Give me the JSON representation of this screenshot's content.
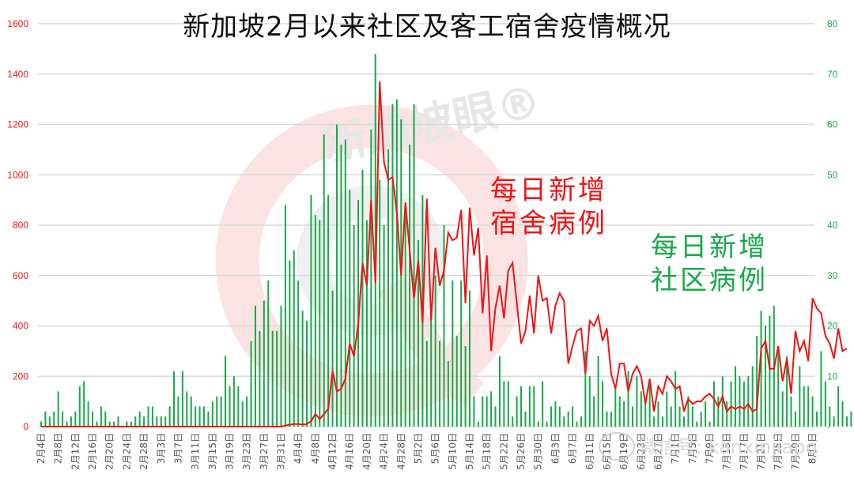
{
  "title": "新加坡2月以来社区及客工宿舍疫情概况",
  "annotations": {
    "dorm": {
      "line1": "每日新增",
      "line2": "宿舍病例",
      "color": "#f01414"
    },
    "community": {
      "line1": "每日新增",
      "line2": "社区病例",
      "color": "#19a84b"
    }
  },
  "watermarks": {
    "center": "新加坡眼®",
    "bottom_right": "微信号: kanxinjiapo"
  },
  "colors": {
    "dorm_line": "#f01414",
    "community_bar": "#19a84b",
    "grid": "#d9d9d9",
    "left_axis_text": "#f01414",
    "right_axis_text": "#19a84b"
  },
  "chart_data": {
    "type": "bar+line",
    "title": "新加坡2月以来社区及客工宿舍疫情概况",
    "xlabel": "",
    "start_date": "2月4日",
    "x_tick_labels": [
      "2月4日",
      "2月8日",
      "2月12日",
      "2月16日",
      "2月20日",
      "2月24日",
      "2月28日",
      "3月3日",
      "3月7日",
      "3月11日",
      "3月15日",
      "3月19日",
      "3月23日",
      "3月27日",
      "3月31日",
      "4月4日",
      "4月8日",
      "4月12日",
      "4月16日",
      "4月20日",
      "4月24日",
      "4月28日",
      "5月2日",
      "5月6日",
      "5月10日",
      "5月14日",
      "5月18日",
      "5月22日",
      "5月26日",
      "5月30日",
      "6月3日",
      "6月7日",
      "6月11日",
      "6月15日",
      "6月19日",
      "6月23日",
      "6月27日",
      "7月1日",
      "7月5日",
      "7月9日",
      "7月13日",
      "7月17日",
      "7月21日",
      "7月25日",
      "7月29日",
      "8月1日"
    ],
    "left_axis": {
      "label": "每日新增宿舍病例",
      "ylim": [
        0,
        1600
      ],
      "ticks": [
        0,
        200,
        400,
        600,
        800,
        1000,
        1200,
        1400,
        1600
      ]
    },
    "right_axis": {
      "label": "每日新增社区病例",
      "ylim": [
        0,
        80
      ],
      "ticks": [
        "-",
        "10",
        "20",
        "30",
        "40",
        "50",
        "60",
        "70",
        "80"
      ]
    },
    "grid": true,
    "legend": "none (inline annotations)",
    "series": [
      {
        "name": "每日新增宿舍病例",
        "type": "line",
        "axis": "left",
        "color": "#f01414",
        "values": [
          0,
          0,
          0,
          0,
          0,
          0,
          0,
          0,
          0,
          0,
          0,
          0,
          0,
          0,
          0,
          0,
          0,
          0,
          0,
          0,
          0,
          0,
          0,
          0,
          0,
          0,
          0,
          0,
          0,
          0,
          0,
          0,
          0,
          0,
          0,
          0,
          0,
          0,
          0,
          0,
          0,
          0,
          0,
          0,
          0,
          0,
          0,
          0,
          0,
          0,
          0,
          0,
          0,
          0,
          0,
          0,
          0,
          4,
          8,
          10,
          10,
          8,
          10,
          22,
          50,
          30,
          50,
          70,
          220,
          140,
          150,
          190,
          330,
          280,
          410,
          650,
          560,
          900,
          570,
          1370,
          1050,
          980,
          990,
          850,
          600,
          890,
          700,
          510,
          660,
          410,
          905,
          420,
          710,
          560,
          620,
          770,
          740,
          750,
          860,
          490,
          870,
          680,
          790,
          450,
          680,
          300,
          470,
          560,
          430,
          620,
          650,
          490,
          330,
          380,
          520,
          370,
          600,
          500,
          510,
          370,
          480,
          530,
          500,
          250,
          320,
          380,
          390,
          210,
          420,
          400,
          440,
          340,
          390,
          210,
          150,
          250,
          250,
          140,
          210,
          240,
          200,
          90,
          190,
          60,
          160,
          130,
          200,
          180,
          150,
          160,
          60,
          110,
          90,
          100,
          100,
          120,
          130,
          110,
          80,
          120,
          60,
          80,
          70,
          80,
          70,
          90,
          60,
          70,
          310,
          340,
          230,
          230,
          320,
          180,
          270,
          130,
          380,
          300,
          340,
          260,
          510,
          470,
          450,
          360,
          330,
          270,
          390,
          300,
          310
        ]
      },
      {
        "name": "每日新增社区病例",
        "type": "bar",
        "axis": "right",
        "color": "#19a84b",
        "values": [
          1,
          3,
          2,
          3,
          7,
          3,
          1,
          2,
          3,
          8,
          9,
          5,
          3,
          1,
          4,
          3,
          1,
          1,
          2,
          0,
          1,
          1,
          2,
          3,
          2,
          4,
          4,
          2,
          2,
          2,
          4,
          11,
          6,
          11,
          7,
          6,
          4,
          4,
          4,
          3,
          5,
          6,
          6,
          14,
          8,
          10,
          8,
          5,
          6,
          17,
          24,
          19,
          25,
          29,
          19,
          19,
          24,
          44,
          33,
          35,
          29,
          23,
          21,
          46,
          42,
          41,
          58,
          46,
          27,
          60,
          56,
          57,
          47,
          40,
          45,
          51,
          41,
          59,
          74,
          49,
          40,
          55,
          64,
          65,
          61,
          42,
          56,
          64,
          37,
          46,
          17,
          21,
          30,
          17,
          40,
          13,
          29,
          18,
          29,
          16,
          27,
          6,
          1,
          6,
          6,
          7,
          4,
          14,
          9,
          9,
          2,
          6,
          8,
          3,
          8,
          8,
          1,
          9,
          1,
          4,
          5,
          4,
          2,
          3,
          4,
          1,
          2,
          15,
          10,
          6,
          14,
          9,
          3,
          3,
          8,
          6,
          5,
          11,
          4,
          10,
          7,
          5,
          9,
          2,
          5,
          2,
          7,
          4,
          11,
          4,
          2,
          6,
          4,
          1,
          3,
          5,
          1,
          9,
          6,
          10,
          5,
          9,
          12,
          10,
          9,
          10,
          12,
          18,
          23,
          20,
          22,
          24,
          16,
          7,
          14,
          6,
          3,
          12,
          8,
          8,
          6,
          3,
          15,
          9,
          4,
          2,
          8,
          5,
          2,
          3,
          1,
          1
        ]
      }
    ]
  }
}
